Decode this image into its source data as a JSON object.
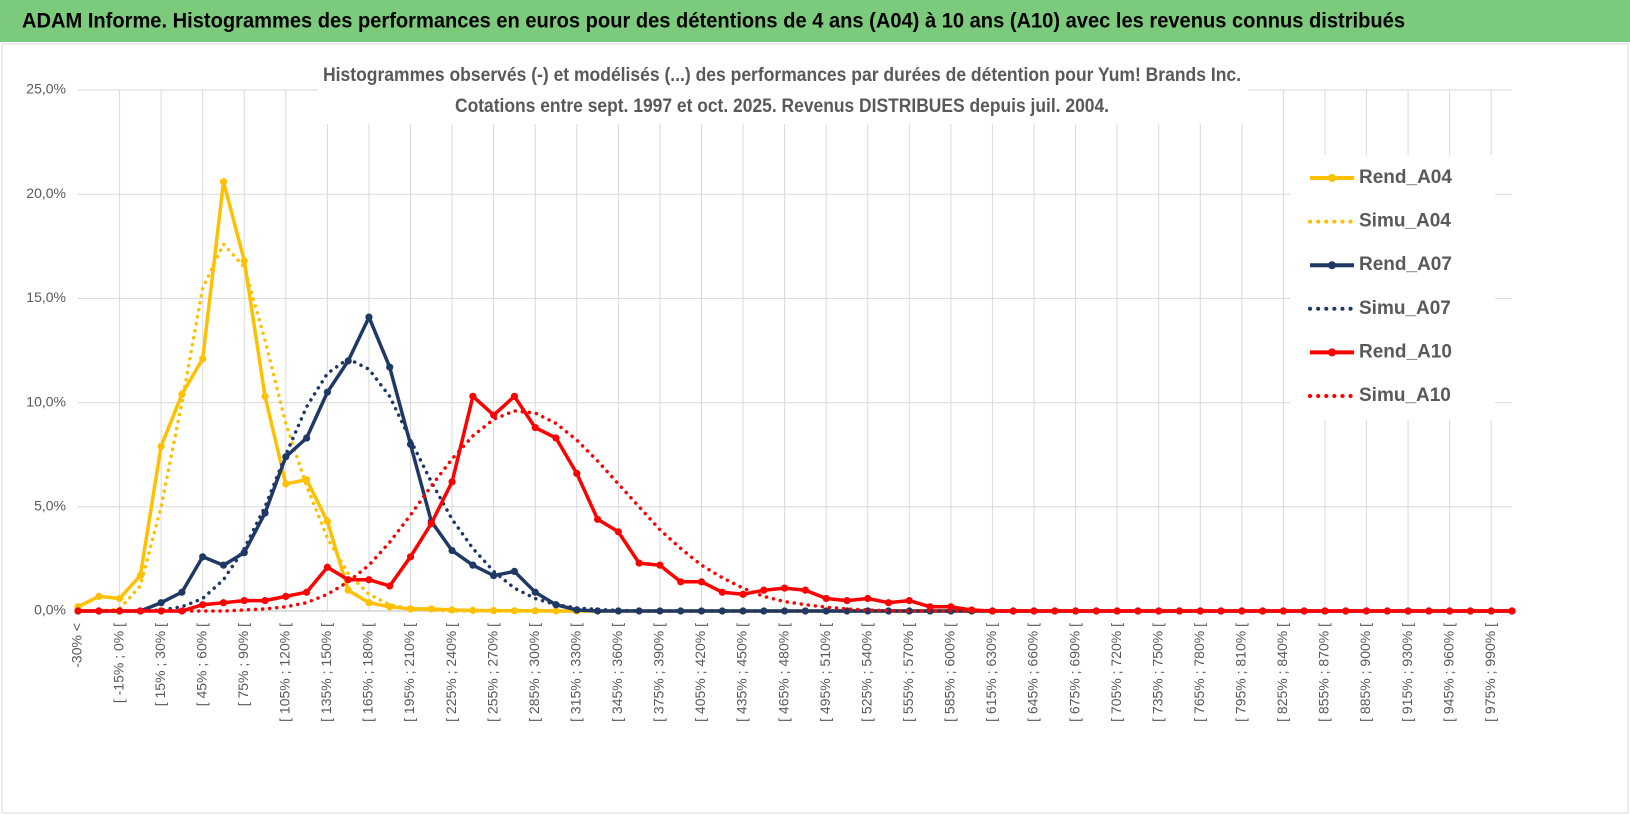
{
  "header_title": "ADAM Informe. Histogrammes des performances en euros pour des détentions de 4 ans (A04) à 10 ans (A10) avec les revenus connus distribués",
  "chart_data": {
    "type": "line",
    "title": "Histogrammes observés (-) et modélisés (...) des performances par durées de détention pour Yum! Brands Inc.",
    "subtitle": "Cotations entre sept. 1997 et oct. 2025. Revenus DISTRIBUES depuis juil. 2004.",
    "categories": [
      "-30% <",
      null,
      "[ -15% ; 0% [",
      null,
      "[ 15% ; 30% [",
      null,
      "[ 45% ; 60% [",
      null,
      "[ 75% ; 90% [",
      null,
      "[ 105% ; 120% [",
      null,
      "[ 135% ; 150% [",
      null,
      "[ 165% ; 180% [",
      null,
      "[ 195% ; 210% [",
      null,
      "[ 225% ; 240% [",
      null,
      "[ 255% ; 270% [",
      null,
      "[ 285% ; 300% [",
      null,
      "[ 315% ; 330% [",
      null,
      "[ 345% ; 360% [",
      null,
      "[ 375% ; 390% [",
      null,
      "[ 405% ; 420% [",
      null,
      "[ 435% ; 450% [",
      null,
      "[ 465% ; 480% [",
      null,
      "[ 495% ; 510% [",
      null,
      "[ 525% ; 540% [",
      null,
      "[ 555% ; 570% [",
      null,
      "[ 585% ; 600% [",
      null,
      "[ 615% ; 630% [",
      null,
      "[ 645% ; 660% [",
      null,
      "[ 675% ; 690% [",
      null,
      "[ 705% ; 720% [",
      null,
      "[ 735% ; 750% [",
      null,
      "[ 765% ; 780% [",
      null,
      "[ 795% ; 810% [",
      null,
      "[ 825% ; 840% [",
      null,
      "[ 855% ; 870% [",
      null,
      "[ 885% ; 900% [",
      null,
      "[ 915% ; 930% [",
      null,
      "[ 945% ; 960% [",
      null,
      "[ 975% ; 990% [",
      null
    ],
    "ylim": [
      0,
      25
    ],
    "yticks": [
      {
        "value": 0,
        "label": "0,0%"
      },
      {
        "value": 5,
        "label": "5,0%"
      },
      {
        "value": 10,
        "label": "10,0%"
      },
      {
        "value": 15,
        "label": "15,0%"
      },
      {
        "value": 20,
        "label": "20,0%"
      },
      {
        "value": 25,
        "label": "25,0%"
      }
    ],
    "grid": true,
    "legend": "right",
    "series": [
      {
        "name": "Rend_A04",
        "color": "#ffc000",
        "line_style": "solid",
        "marker": true,
        "values": [
          0.2,
          0.7,
          0.6,
          1.7,
          7.9,
          10.4,
          12.1,
          20.6,
          16.8,
          10.3,
          6.1,
          6.3,
          4.3,
          1.0,
          0.4,
          0.2,
          0.1,
          0.1,
          0.05,
          0.03,
          0.02,
          0.01,
          0.01,
          0,
          0,
          0,
          0,
          0,
          0,
          0,
          0,
          0,
          0,
          0,
          0,
          0,
          0,
          0,
          0,
          0,
          0,
          0,
          0,
          0,
          0,
          0,
          0,
          0,
          0,
          0,
          0,
          0,
          0,
          0,
          0,
          0,
          0,
          0,
          0,
          0,
          0,
          0,
          0,
          0,
          0,
          0,
          0,
          0,
          0,
          0
        ]
      },
      {
        "name": "Simu_A04",
        "color": "#ffc000",
        "line_style": "dotted",
        "marker": false,
        "values": [
          0,
          0,
          0.1,
          1.2,
          5,
          10,
          15.5,
          17.6,
          16.5,
          13,
          9,
          6,
          3.5,
          1.8,
          0.8,
          0.3,
          0.1,
          0.05,
          0,
          0,
          0,
          0,
          0,
          0,
          0,
          0,
          0,
          0,
          0,
          0,
          0,
          0,
          0,
          0,
          0,
          0,
          0,
          0,
          0,
          0,
          0,
          0,
          0,
          0,
          0,
          0,
          0,
          0,
          0,
          0,
          0,
          0,
          0,
          0,
          0,
          0,
          0,
          0,
          0,
          0,
          0,
          0,
          0,
          0,
          0,
          0,
          0,
          0,
          0,
          0
        ]
      },
      {
        "name": "Rend_A07",
        "color": "#1f3864",
        "line_style": "solid",
        "marker": true,
        "values": [
          0,
          0,
          0,
          0,
          0.4,
          0.9,
          2.6,
          2.2,
          2.8,
          4.7,
          7.4,
          8.3,
          10.5,
          12,
          14.1,
          11.7,
          8,
          4.3,
          2.9,
          2.2,
          1.7,
          1.9,
          0.9,
          0.3,
          0.05,
          0,
          0,
          0,
          0,
          0,
          0,
          0,
          0,
          0,
          0,
          0,
          0,
          0,
          0,
          0,
          0,
          0,
          0,
          0,
          0,
          0,
          0,
          0,
          0,
          0,
          0,
          0,
          0,
          0,
          0,
          0,
          0,
          0,
          0,
          0,
          0,
          0,
          0,
          0,
          0,
          0,
          0,
          0,
          0,
          0
        ]
      },
      {
        "name": "Simu_A07",
        "color": "#1f3864",
        "line_style": "dotted",
        "marker": false,
        "values": [
          0,
          0,
          0,
          0,
          0.05,
          0.2,
          0.6,
          1.5,
          3,
          5,
          7.5,
          9.8,
          11.4,
          12.1,
          11.6,
          10.3,
          8.2,
          6.2,
          4.4,
          3,
          1.9,
          1.1,
          0.6,
          0.3,
          0.15,
          0.07,
          0.03,
          0,
          0,
          0,
          0,
          0,
          0,
          0,
          0,
          0,
          0,
          0,
          0,
          0,
          0,
          0,
          0,
          0,
          0,
          0,
          0,
          0,
          0,
          0,
          0,
          0,
          0,
          0,
          0,
          0,
          0,
          0,
          0,
          0,
          0,
          0,
          0,
          0,
          0,
          0,
          0,
          0,
          0,
          0
        ]
      },
      {
        "name": "Rend_A10",
        "color": "#ff0000",
        "line_style": "solid",
        "marker": true,
        "values": [
          0,
          0,
          0,
          0,
          0,
          0,
          0.3,
          0.4,
          0.5,
          0.5,
          0.7,
          0.9,
          2.1,
          1.5,
          1.5,
          1.2,
          2.6,
          4.2,
          6.2,
          10.3,
          9.4,
          10.3,
          8.8,
          8.3,
          6.6,
          4.4,
          3.8,
          2.3,
          2.2,
          1.4,
          1.4,
          0.9,
          0.8,
          1,
          1.1,
          1,
          0.6,
          0.5,
          0.6,
          0.4,
          0.5,
          0.2,
          0.2,
          0.05,
          0,
          0,
          0,
          0,
          0,
          0,
          0,
          0,
          0,
          0,
          0,
          0,
          0,
          0,
          0,
          0,
          0,
          0,
          0,
          0,
          0,
          0,
          0,
          0,
          0,
          0
        ]
      },
      {
        "name": "Simu_A10",
        "color": "#ff0000",
        "line_style": "dotted",
        "marker": false,
        "values": [
          0,
          0,
          0,
          0,
          0,
          0,
          0,
          0,
          0.05,
          0.1,
          0.2,
          0.4,
          0.8,
          1.4,
          2.2,
          3.3,
          4.6,
          6,
          7.3,
          8.4,
          9.2,
          9.6,
          9.5,
          9,
          8.2,
          7.2,
          6.1,
          5,
          3.9,
          3,
          2.2,
          1.6,
          1.1,
          0.7,
          0.45,
          0.3,
          0.18,
          0.1,
          0.05,
          0.02,
          0,
          0,
          0,
          0,
          0,
          0,
          0,
          0,
          0,
          0,
          0,
          0,
          0,
          0,
          0,
          0,
          0,
          0,
          0,
          0,
          0,
          0,
          0,
          0,
          0,
          0,
          0,
          0,
          0,
          0
        ]
      }
    ]
  }
}
